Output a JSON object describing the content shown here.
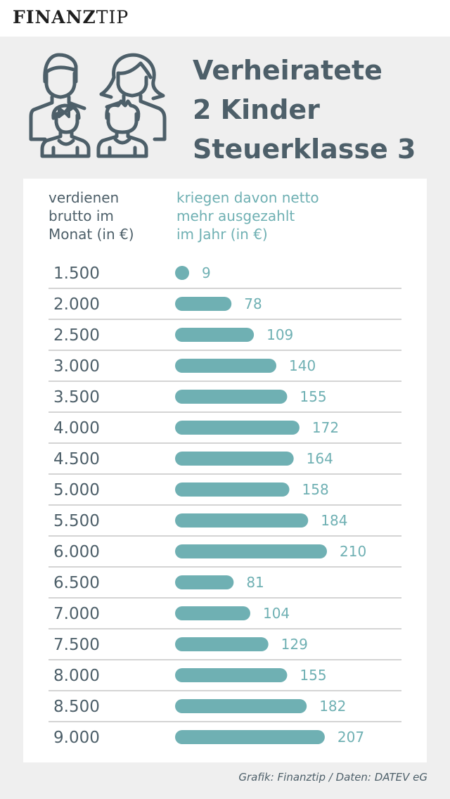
{
  "brand": {
    "part1": "FINANZ",
    "part2": "TIP"
  },
  "icon": "family-icon",
  "heading": {
    "line1": "Verheiratete",
    "line2": "2 Kinder",
    "line3": "Steuerklasse 3"
  },
  "columns": {
    "left": [
      "verdienen",
      "brutto im",
      "Monat (in €)"
    ],
    "right": [
      "kriegen davon netto",
      "mehr ausgezahlt",
      "im Jahr (in €)"
    ]
  },
  "footer": "Grafik: Finanztip / Daten: DATEV eG",
  "colors": {
    "bar": "#6fb0b3",
    "text": "#4d5f69",
    "background": "#efefef",
    "divider": "#a9a9a9"
  },
  "chart_data": {
    "type": "bar",
    "orientation": "horizontal",
    "categories": [
      "1.500",
      "2.000",
      "2.500",
      "3.000",
      "3.500",
      "4.000",
      "4.500",
      "5.000",
      "5.500",
      "6.000",
      "6.500",
      "7.000",
      "7.500",
      "8.000",
      "8.500",
      "9.000"
    ],
    "values": [
      9,
      78,
      109,
      140,
      155,
      172,
      164,
      158,
      184,
      210,
      81,
      104,
      129,
      155,
      182,
      207
    ],
    "value_labels": [
      "9",
      "78",
      "109",
      "140",
      "155",
      "172",
      "164",
      "158",
      "184",
      "210",
      "81",
      "104",
      "129",
      "155",
      "182",
      "207"
    ],
    "xlim": [
      0,
      210
    ],
    "grid": false
  }
}
